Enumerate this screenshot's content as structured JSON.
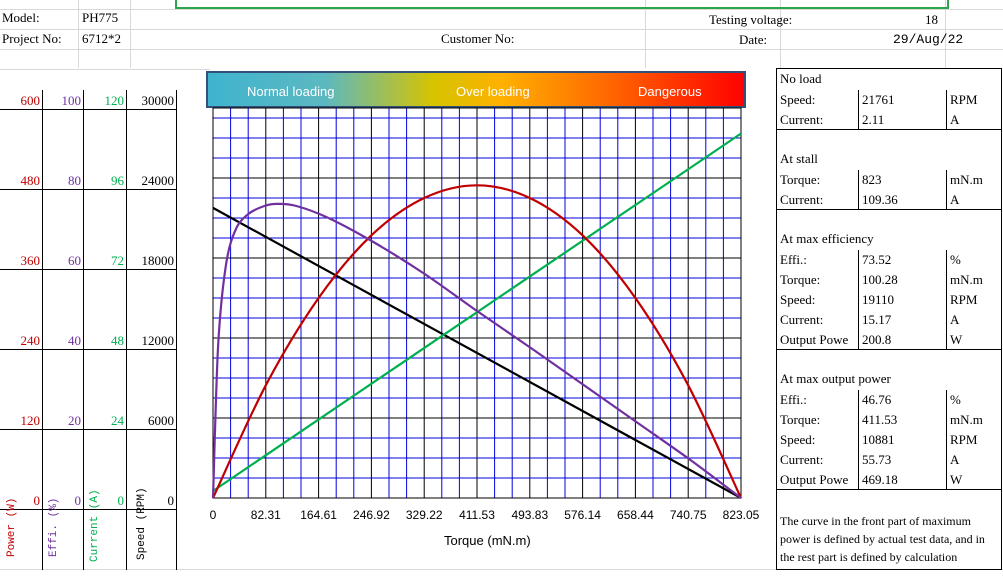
{
  "header": {
    "model_label": "Model:",
    "model_value": "PH775",
    "project_label": "Project No:",
    "project_value": "6712*2",
    "customer_label": "Customer No:",
    "testing_voltage_label": "Testing voltage:",
    "testing_voltage_value": "18",
    "date_label": "Date:",
    "date_value": "29/Aug/22"
  },
  "axes_columns": {
    "power": {
      "label": "Power (W)",
      "ticks": [
        "600",
        "480",
        "360",
        "240",
        "120",
        "0"
      ],
      "color": "#c00000"
    },
    "effi": {
      "label": "Effi. (%)",
      "ticks": [
        "100",
        "80",
        "60",
        "40",
        "20",
        "0"
      ],
      "color": "#7030a0"
    },
    "current": {
      "label": "Current (A)",
      "ticks": [
        "120",
        "96",
        "72",
        "48",
        "24",
        "0"
      ],
      "color": "#00b050"
    },
    "speed": {
      "label": "Speed (RPM)",
      "ticks": [
        "30000",
        "24000",
        "18000",
        "12000",
        "6000",
        "0"
      ],
      "color": "#000000"
    }
  },
  "banner": {
    "normal": "Normal loading",
    "over": "Over loading",
    "danger": "Dangerous"
  },
  "chart_data": {
    "type": "line",
    "xlabel": "Torque (mN.m)",
    "x_ticks": [
      "0",
      "82.31",
      "164.61",
      "246.92",
      "329.22",
      "411.53",
      "493.83",
      "576.14",
      "658.44",
      "740.75",
      "823.05"
    ],
    "xlim": [
      0,
      823.05
    ],
    "grid": true,
    "series": [
      {
        "name": "Speed",
        "axis": "speed",
        "color": "#000000",
        "x": [
          0,
          823.05
        ],
        "y": [
          21761,
          0
        ]
      },
      {
        "name": "Current",
        "axis": "current",
        "color": "#00b050",
        "x": [
          0,
          823.05
        ],
        "y": [
          2.11,
          109.36
        ]
      },
      {
        "name": "Power",
        "axis": "power",
        "color": "#c00000",
        "x": [
          0,
          82.31,
          164.61,
          246.92,
          329.22,
          411.53,
          493.83,
          576.14,
          658.44,
          740.75,
          823.05
        ],
        "y": [
          0,
          169,
          300,
          394,
          450,
          469,
          450,
          394,
          300,
          169,
          0
        ]
      },
      {
        "name": "Effi.",
        "axis": "effi",
        "color": "#7030a0",
        "x": [
          0,
          8,
          20,
          35,
          55,
          80,
          100.28,
          130,
          180,
          250,
          330,
          411.53,
          500,
          580,
          660,
          740,
          790,
          823.05
        ],
        "y": [
          0,
          38,
          58,
          67,
          71,
          73,
          73.52,
          73,
          70,
          64,
          56,
          46.76,
          37,
          28,
          19,
          10,
          4,
          0
        ]
      }
    ]
  },
  "panel": {
    "no_load": {
      "title": "No load",
      "speed_label": "Speed:",
      "speed_value": "21761",
      "speed_unit": "RPM",
      "current_label": "Current:",
      "current_value": "2.11",
      "current_unit": "A"
    },
    "at_stall": {
      "title": "At stall",
      "torque_label": "Torque:",
      "torque_value": "823",
      "torque_unit": "mN.m",
      "current_label": "Current:",
      "current_value": "109.36",
      "current_unit": "A"
    },
    "max_eff": {
      "title": "At max efficiency",
      "effi_label": "Effi.:",
      "effi_value": "73.52",
      "effi_unit": "%",
      "torque_label": "Torque:",
      "torque_value": "100.28",
      "torque_unit": "mN.m",
      "speed_label": "Speed:",
      "speed_value": "19110",
      "speed_unit": "RPM",
      "current_label": "Current:",
      "current_value": "15.17",
      "current_unit": "A",
      "power_label": "Output Powe",
      "power_value": "200.8",
      "power_unit": "W"
    },
    "max_power": {
      "title": "At max output power",
      "effi_label": "Effi.:",
      "effi_value": "46.76",
      "effi_unit": "%",
      "torque_label": "Torque:",
      "torque_value": "411.53",
      "torque_unit": "mN.m",
      "speed_label": "Speed:",
      "speed_value": "10881",
      "speed_unit": "RPM",
      "current_label": "Current:",
      "current_value": "55.73",
      "current_unit": "A",
      "power_label": "Output Powe",
      "power_value": "469.18",
      "power_unit": "W"
    },
    "note": "The curve in the front part of maximum power is defined by actual test data, and in the rest part is defined by calculation"
  }
}
